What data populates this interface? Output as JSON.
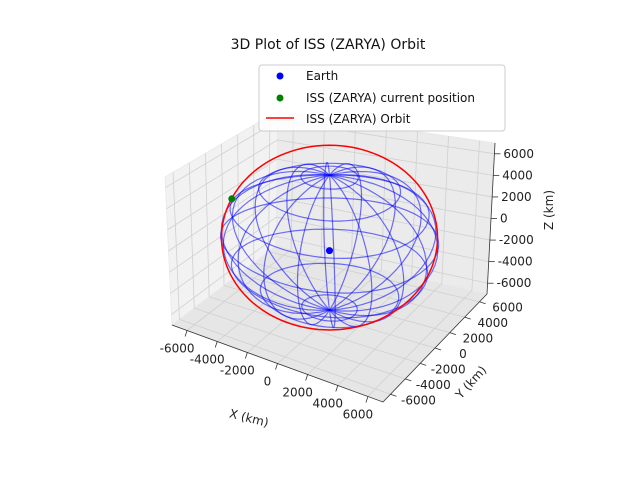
{
  "chart_data": {
    "type": "scatter",
    "projection": "3d",
    "title": "3D Plot of ISS (ZARYA) Orbit",
    "xlabel": "X (km)",
    "ylabel": "Y (km)",
    "zlabel": "Z (km)",
    "xlim": [
      -7000,
      7000
    ],
    "ylim": [
      -7000,
      7000
    ],
    "zlim": [
      -7000,
      7000
    ],
    "xticks": [
      -6000,
      -4000,
      -2000,
      0,
      2000,
      4000,
      6000
    ],
    "yticks": [
      -6000,
      -4000,
      -2000,
      0,
      2000,
      4000,
      6000
    ],
    "zticks": [
      -6000,
      -4000,
      -2000,
      0,
      2000,
      4000,
      6000
    ],
    "grid": true,
    "legend_position": "top-right",
    "legend": [
      "Earth",
      "ISS (ZARYA) current position",
      "ISS (ZARYA) Orbit"
    ],
    "earth": {
      "name": "Earth",
      "center": [
        0,
        0,
        0
      ],
      "radius_km": 6371,
      "color": "#0000ff"
    },
    "iss_position": {
      "name": "ISS (ZARYA) current position",
      "x": -6500,
      "y": -1500,
      "z": 2000,
      "color": "#008000"
    },
    "orbit": {
      "name": "ISS (ZARYA) Orbit",
      "radius_km": 6750,
      "color": "#ff0000"
    }
  }
}
